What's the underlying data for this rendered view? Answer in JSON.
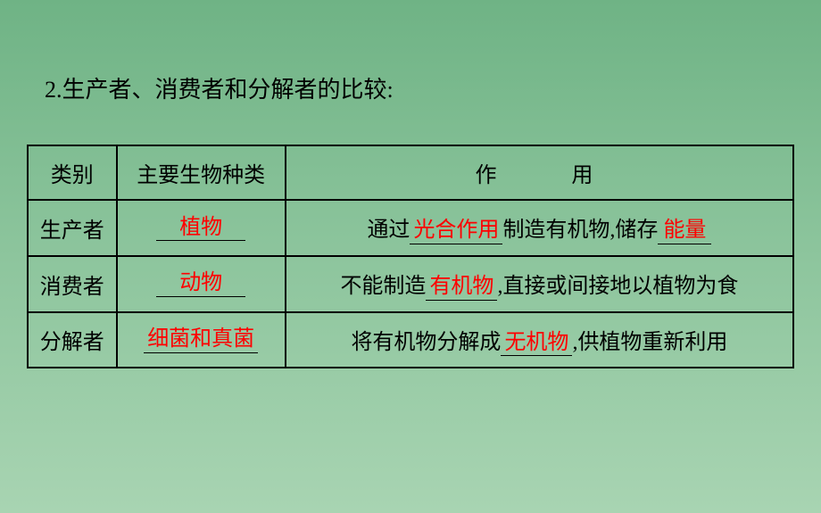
{
  "title": "2.生产者、消费者和分解者的比较:",
  "table": {
    "headers": {
      "type": "类别",
      "species": "主要生物种类",
      "function": "作　　用"
    },
    "rows": [
      {
        "type": "生产者",
        "species": "植物",
        "function_parts": {
          "prefix": "通过",
          "blank1": "光合作用",
          "middle": "制造有机物,储存",
          "blank2": "能量"
        }
      },
      {
        "type": "消费者",
        "species": "动物",
        "function_parts": {
          "prefix": "不能制造",
          "blank1": "有机物",
          "middle": ",直接或间接地以植物为食",
          "blank2": ""
        }
      },
      {
        "type": "分解者",
        "species": "细菌和真菌",
        "function_parts": {
          "prefix": "将有机物分解成",
          "blank1": "无机物",
          "middle": ",供植物重新利用",
          "blank2": ""
        }
      }
    ]
  },
  "colors": {
    "answer_text": "#ff0000",
    "normal_text": "#000000",
    "border": "#000000",
    "bg_gradient_top": "#6fb385",
    "bg_gradient_mid": "#8dc59d",
    "bg_gradient_bottom": "#a8d4b2"
  },
  "typography": {
    "title_fontsize": 26,
    "cell_fontsize": 24,
    "font_family": "SimSun"
  }
}
